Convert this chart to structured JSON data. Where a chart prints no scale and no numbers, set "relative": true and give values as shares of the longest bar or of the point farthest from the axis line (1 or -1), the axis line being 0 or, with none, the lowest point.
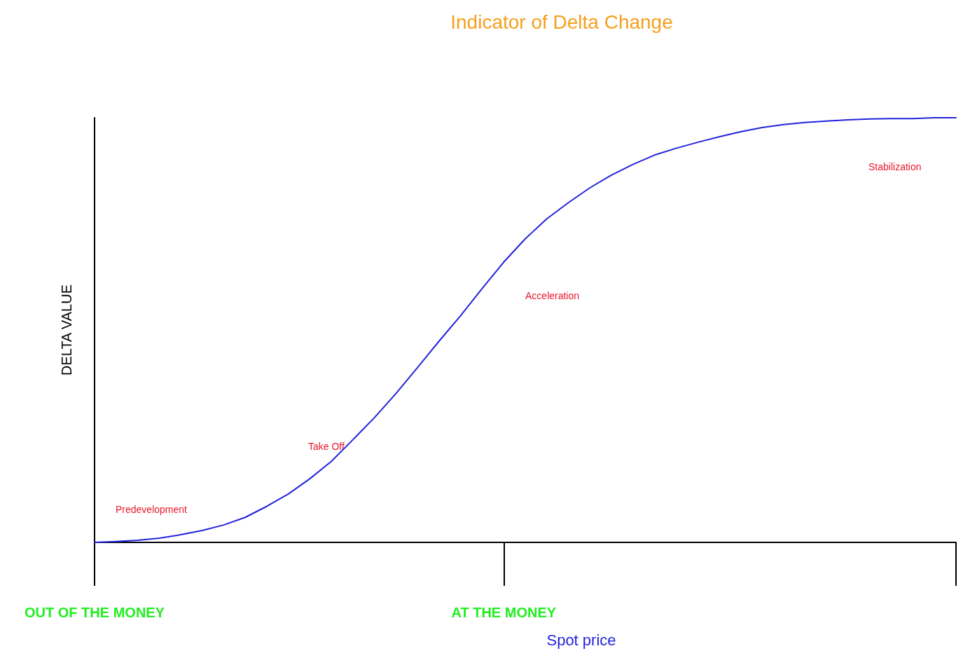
{
  "chart_data": {
    "type": "line",
    "title": "Indicator of Delta Change",
    "xlabel": "Spot price",
    "ylabel": "DELTA VALUE",
    "relative": true,
    "color": "#2323dc",
    "marker": "none",
    "line_style": "solid",
    "grid": false,
    "categories": [
      "OUT OF THE MONEY",
      null,
      null,
      null,
      null,
      null,
      null,
      null,
      null,
      null,
      null,
      null,
      null,
      null,
      null,
      null,
      null,
      null,
      null,
      "AT THE MONEY",
      null,
      null,
      null,
      null,
      null,
      null,
      null,
      null,
      null,
      null,
      null,
      null,
      null,
      null,
      null,
      null,
      null,
      null,
      null,
      null,
      null
    ],
    "values": [
      0,
      0.002,
      0.005,
      0.01,
      0.018,
      0.028,
      0.041,
      0.059,
      0.085,
      0.114,
      0.15,
      0.191,
      0.242,
      0.294,
      0.351,
      0.412,
      0.474,
      0.534,
      0.598,
      0.66,
      0.715,
      0.762,
      0.8,
      0.835,
      0.865,
      0.89,
      0.912,
      0.928,
      0.942,
      0.955,
      0.967,
      0.977,
      0.984,
      0.989,
      0.992,
      0.995,
      0.997,
      0.998,
      0.998,
      1,
      1
    ],
    "annotations": [
      "Predevelopment",
      "Take Off",
      "Acceleration",
      "Stabilization"
    ]
  }
}
